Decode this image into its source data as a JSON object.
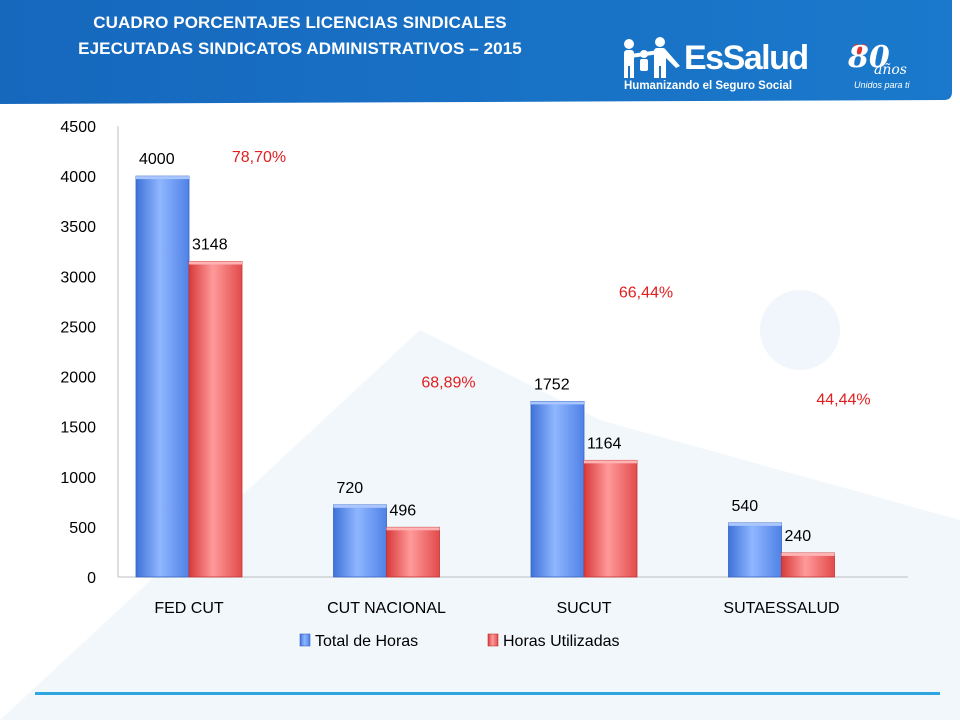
{
  "title": {
    "line1": "CUADRO  PORCENTAJES LICENCIAS  SINDICALES",
    "line2": "EJECUTADAS SINDICATOS ADMINISTRATIVOS – 2015"
  },
  "logo": {
    "brand": "EsSalud",
    "tagline": "Humanizando el Seguro Social",
    "anniversary_number": "80",
    "anniversary_word": "años",
    "anniversary_sub": "Unidos para ti"
  },
  "colors": {
    "header_blue": "#1a74c9",
    "series_total": "#5b8ff0",
    "series_used": "#ee5a5a",
    "percent_label": "#e02020",
    "footer_line": "#2ea7e0"
  },
  "chart_data": {
    "type": "bar",
    "title": "",
    "xlabel": "",
    "ylabel": "",
    "ylim": [
      0,
      4500
    ],
    "yticks": [
      0,
      500,
      1000,
      1500,
      2000,
      2500,
      3000,
      3500,
      4000,
      4500
    ],
    "grid": false,
    "legend_position": "bottom",
    "categories": [
      "FED CUT",
      "CUT NACIONAL",
      "SUCUT",
      "SUTAESSALUD"
    ],
    "series": [
      {
        "name": "Total de Horas",
        "values": [
          4000,
          720,
          1752,
          540
        ]
      },
      {
        "name": "Horas Utilizadas",
        "values": [
          3148,
          496,
          1164,
          240
        ]
      }
    ],
    "annotations": [
      {
        "category": "FED CUT",
        "text": "78,70%",
        "y": 4200
      },
      {
        "category": "CUT NACIONAL",
        "text": "68,89%",
        "y": 1950
      },
      {
        "category": "SUCUT",
        "text": "66,44%",
        "y": 2850
      },
      {
        "category": "SUTAESSALUD",
        "text": "44,44%",
        "y": 1780
      }
    ]
  }
}
